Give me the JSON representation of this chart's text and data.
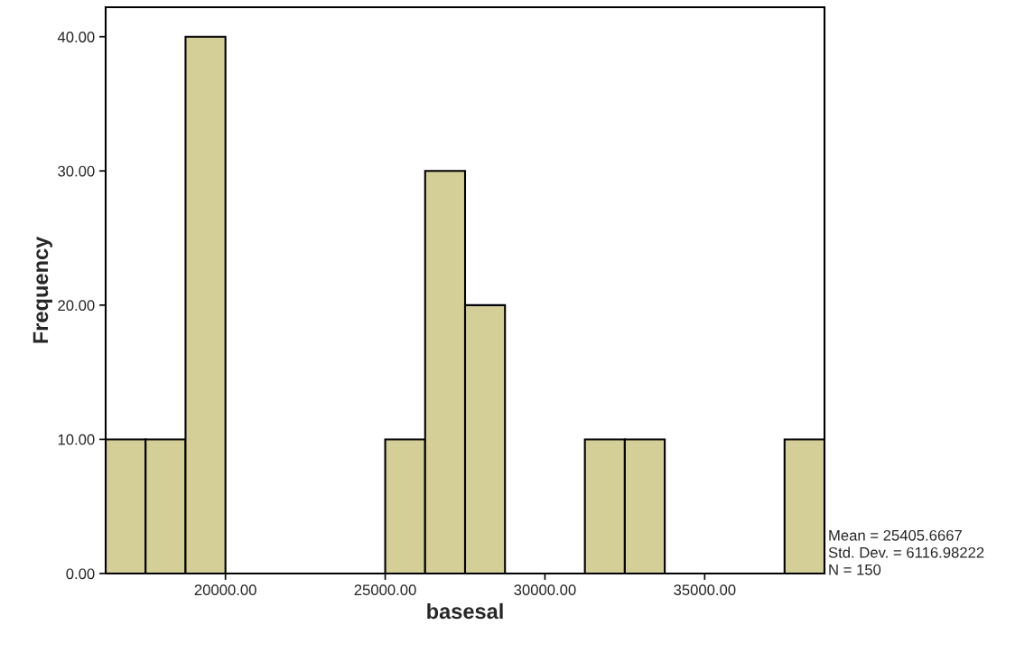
{
  "chart_data": {
    "type": "histogram",
    "xlabel": "basesal",
    "ylabel": "Frequency",
    "bins": [
      16250,
      17500,
      18750,
      20000,
      21250,
      22500,
      23750,
      25000,
      26250,
      27500,
      28750,
      30000,
      31250,
      32500,
      33750,
      35000,
      36250,
      37500,
      38750
    ],
    "values": [
      10,
      10,
      40,
      0,
      0,
      0,
      0,
      10,
      30,
      20,
      0,
      0,
      10,
      10,
      0,
      0,
      0,
      10
    ],
    "color": "#d3cf96",
    "xlim": [
      16250,
      38750
    ],
    "xticks": [
      {
        "value": 20000,
        "label": "20000.00"
      },
      {
        "value": 25000,
        "label": "25000.00"
      },
      {
        "value": 30000,
        "label": "30000.00"
      },
      {
        "value": 35000,
        "label": "35000.00"
      }
    ],
    "ylim": [
      0,
      42.2
    ],
    "yticks": [
      {
        "value": 0,
        "label": "0.00"
      },
      {
        "value": 10,
        "label": "10.00"
      },
      {
        "value": 20,
        "label": "20.00"
      },
      {
        "value": 30,
        "label": "30.00"
      },
      {
        "value": 40,
        "label": "40.00"
      }
    ],
    "grid": false,
    "annotations": [
      "Mean = 25405.6667",
      "Std. Dev. = 6116.98222",
      "N = 150"
    ]
  }
}
